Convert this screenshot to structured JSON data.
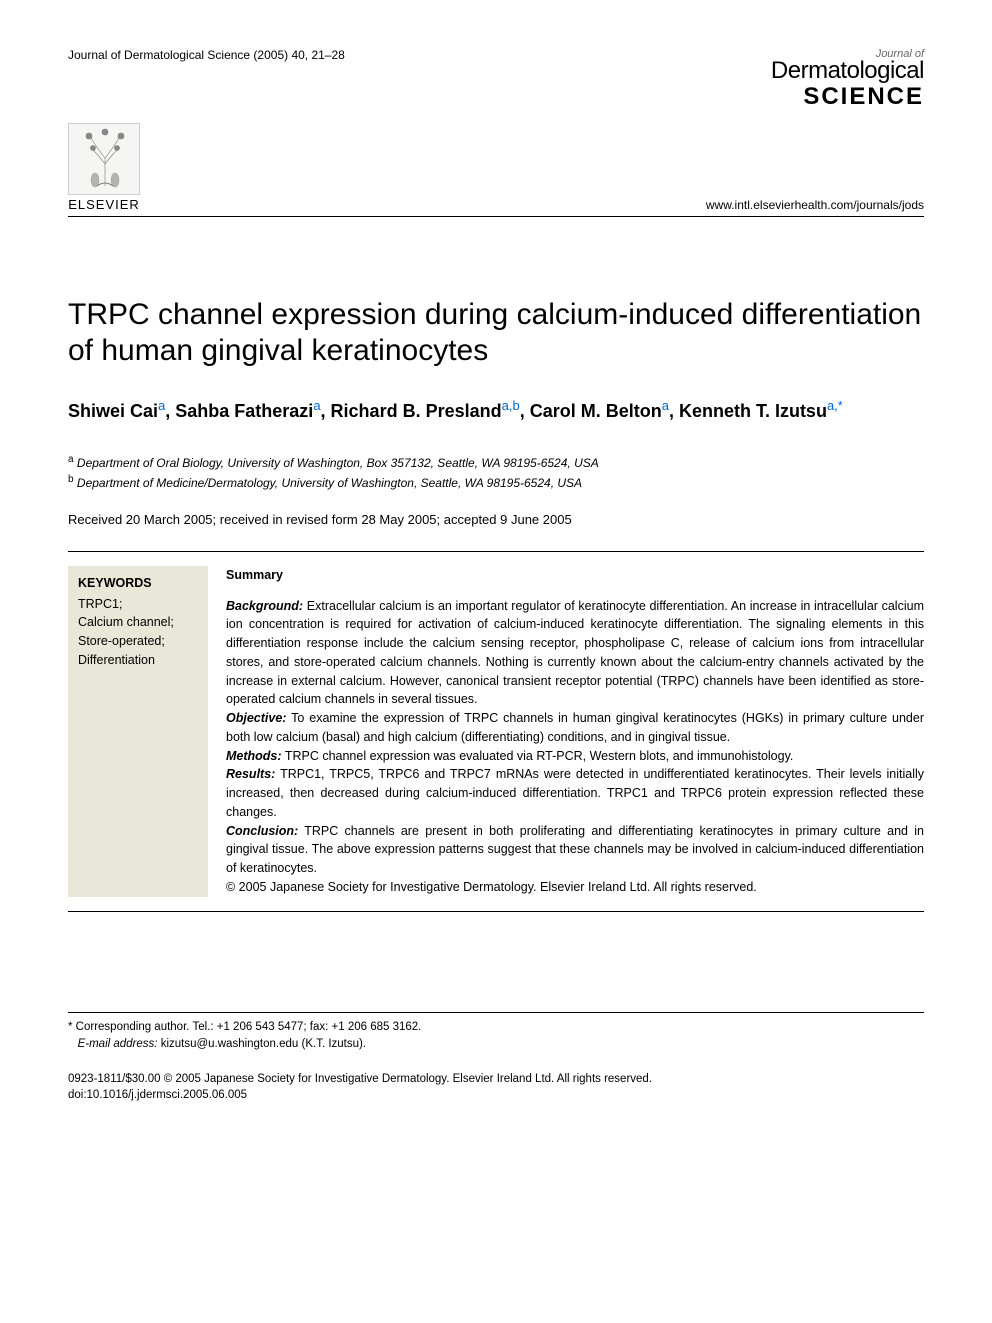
{
  "header": {
    "journal_ref": "Journal of Dermatological Science (2005) 40, 21–28",
    "journal_logo_small": "Journal of",
    "journal_logo_main": "Dermatological",
    "journal_logo_science": "SCIENCE",
    "publisher_name": "ELSEVIER",
    "journal_url": "www.intl.elsevierhealth.com/journals/jods"
  },
  "article": {
    "title": "TRPC channel expression during calcium-induced differentiation of human gingival keratinocytes",
    "authors_html": "Shiwei Cai<sup class='aff-a'>a</sup>, Sahba Fatherazi<sup class='aff-a'>a</sup>, Richard B. Presland<sup class='aff-a'>a,</sup><sup class='aff-b'>b</sup>, Carol M. Belton<sup class='aff-a'>a</sup>, Kenneth T. Izutsu<sup class='aff-a'>a,</sup><sup class='corr'>*</sup>",
    "affiliations": {
      "a": "Department of Oral Biology, University of Washington, Box 357132, Seattle, WA 98195-6524, USA",
      "b": "Department of Medicine/Dermatology, University of Washington, Seattle, WA 98195-6524, USA"
    },
    "dates": "Received 20 March 2005; received in revised form 28 May 2005; accepted 9 June 2005"
  },
  "keywords": {
    "heading": "KEYWORDS",
    "items": [
      "TRPC1;",
      "Calcium channel;",
      "Store-operated;",
      "Differentiation"
    ]
  },
  "summary": {
    "heading": "Summary",
    "background_label": "Background:",
    "background": "Extracellular calcium is an important regulator of keratinocyte differentiation. An increase in intracellular calcium ion concentration is required for activation of calcium-induced keratinocyte differentiation. The signaling elements in this differentiation response include the calcium sensing receptor, phospholipase C, release of calcium ions from intracellular stores, and store-operated calcium channels. Nothing is currently known about the calcium-entry channels activated by the increase in external calcium. However, canonical transient receptor potential (TRPC) channels have been identified as store-operated calcium channels in several tissues.",
    "objective_label": "Objective:",
    "objective": "To examine the expression of TRPC channels in human gingival keratinocytes (HGKs) in primary culture under both low calcium (basal) and high calcium (differentiating) conditions, and in gingival tissue.",
    "methods_label": "Methods:",
    "methods": "TRPC channel expression was evaluated via RT-PCR, Western blots, and immunohistology.",
    "results_label": "Results:",
    "results": "TRPC1, TRPC5, TRPC6 and TRPC7 mRNAs were detected in undifferentiated keratinocytes. Their levels initially increased, then decreased during calcium-induced differentiation. TRPC1 and TRPC6 protein expression reflected these changes.",
    "conclusion_label": "Conclusion:",
    "conclusion": "TRPC channels are present in both proliferating and differentiating keratinocytes in primary culture and in gingival tissue. The above expression patterns suggest that these channels may be involved in calcium-induced differentiation of keratinocytes.",
    "copyright": "© 2005 Japanese Society for Investigative Dermatology. Elsevier Ireland Ltd. All rights reserved."
  },
  "footer": {
    "corresponding": "* Corresponding author. Tel.: +1 206 543 5477; fax: +1 206 685 3162.",
    "email_label": "E-mail address:",
    "email": "kizutsu@u.washington.edu (K.T. Izutsu).",
    "issn_line": "0923-1811/$30.00 © 2005 Japanese Society for Investigative Dermatology. Elsevier Ireland Ltd. All rights reserved.",
    "doi": "doi:10.1016/j.jdermsci.2005.06.005"
  },
  "colors": {
    "keyword_bg": "#e9e7d8",
    "link_blue": "#0066cc",
    "text": "#000000",
    "background": "#ffffff"
  }
}
